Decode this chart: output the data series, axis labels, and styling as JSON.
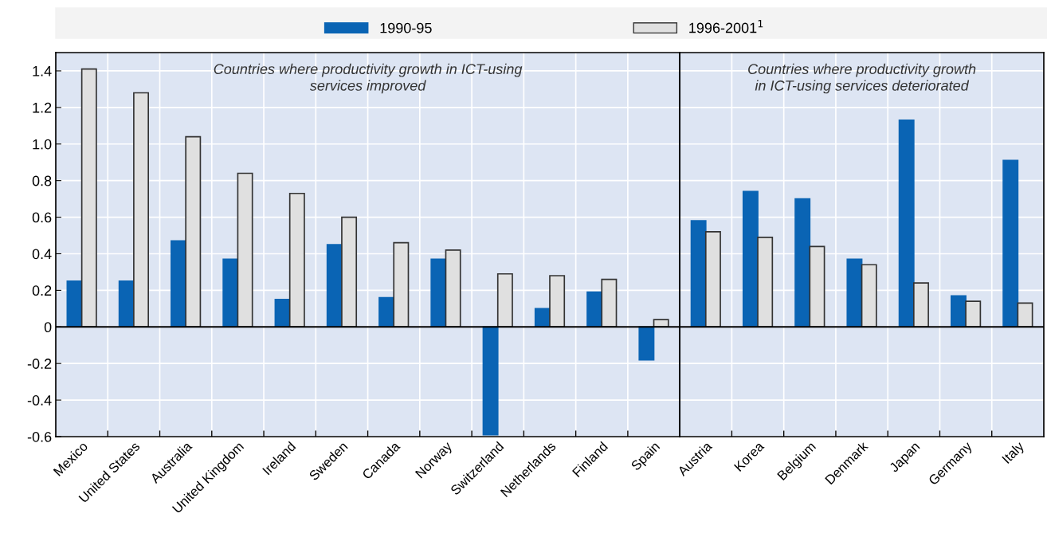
{
  "chart_data": [
    {
      "type": "bar",
      "categories": [
        "Mexico",
        "United States",
        "Australia",
        "United Kingdom",
        "Ireland",
        "Sweden",
        "Canada",
        "Norway",
        "Switzerland",
        "Netherlands",
        "Finland",
        "Spain"
      ],
      "series": [
        {
          "name": "1990-95",
          "color": "#0a64b4",
          "values": [
            0.25,
            0.25,
            0.47,
            0.37,
            0.15,
            0.45,
            0.16,
            0.37,
            -0.59,
            0.1,
            0.19,
            -0.18
          ]
        },
        {
          "name": "1996-2001$^{1}$",
          "color": "#e0e0e0",
          "values": [
            1.41,
            1.28,
            1.04,
            0.84,
            0.73,
            0.6,
            0.46,
            0.42,
            0.29,
            0.28,
            0.26,
            0.04
          ]
        }
      ],
      "ylim": [
        -0.6,
        1.5
      ],
      "yticks": [
        {
          "value": -0.6,
          "label": "-0.6"
        },
        {
          "value": -0.4,
          "label": "-0.4"
        },
        {
          "value": -0.2,
          "label": "-0.2"
        },
        0,
        0.2,
        0.4,
        0.6,
        0.8,
        {
          "value": 1.0,
          "label": "1.0"
        },
        1.2,
        1.4
      ],
      "annotations": [
        "Countries where productivity growth in ICT-using\nservices improved"
      ],
      "grid": true,
      "legend": "top"
    },
    {
      "type": "bar",
      "categories": [
        "Austria",
        "Korea",
        "Belgium",
        "Denmark",
        "Japan",
        "Germany",
        "Italy"
      ],
      "series": [
        {
          "color": "#0a64b4",
          "values": [
            0.58,
            0.74,
            0.7,
            0.37,
            1.13,
            0.17,
            0.91
          ]
        },
        {
          "color": "#e0e0e0",
          "values": [
            0.52,
            0.49,
            0.44,
            0.34,
            0.24,
            0.14,
            0.13
          ]
        }
      ],
      "ylim": [
        -0.6,
        1.5
      ],
      "yticks": [
        -0.6,
        -0.4,
        -0.2,
        0,
        0.2,
        0.4,
        0.6,
        0.8,
        1.0,
        1.2,
        1.4
      ],
      "tick_labels": "x",
      "annotations": [
        "Countries where productivity growth\nin ICT-using services deteriorated"
      ],
      "grid": true
    }
  ]
}
